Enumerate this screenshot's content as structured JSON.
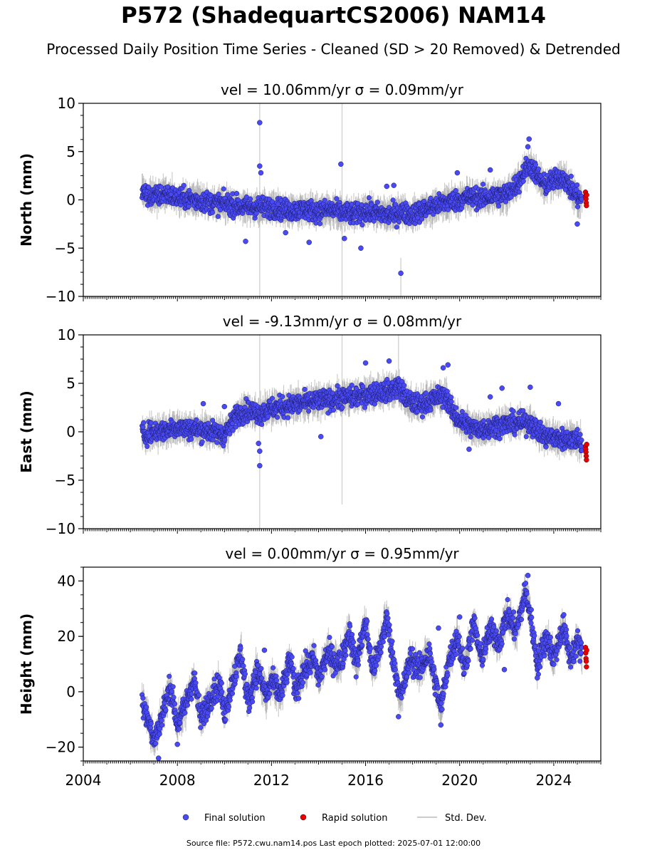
{
  "chart_data": {
    "type": "scatter",
    "title": "P572 (ShadequartCS2006) NAM14",
    "subtitle": "Processed Daily Position Time Series - Cleaned (SD > 20 Removed) & Detrended",
    "footer": "Source file: P572.cwu.nam14.pos  Last epoch plotted: 2025-07-01 12:00:00",
    "x_ticks": [
      "2004",
      "2008",
      "2012",
      "2016",
      "2020",
      "2024"
    ],
    "xlim": [
      2004.0,
      2026.0
    ],
    "legend": {
      "placement": "bottom-center",
      "entries": [
        {
          "label": "Final solution",
          "color": "#4a4af4"
        },
        {
          "label": "Rapid solution",
          "color": "#e80000"
        },
        {
          "label": "Std. Dev.",
          "color": "#cccccc"
        }
      ]
    },
    "colors": {
      "final": "#4a4af4",
      "rapid": "#e80000",
      "stddev": "#888888"
    },
    "panels": [
      {
        "ylabel": "North (mm)",
        "stat": "vel = 10.06mm/yr   σ = 0.09mm/yr",
        "ylim": [
          -10,
          10
        ],
        "yticks": [
          -10,
          -5,
          0,
          5,
          10
        ],
        "ytick_labels": [
          "−10",
          "−5",
          "0",
          "5",
          "10"
        ],
        "final_series": [
          [
            2006.5,
            0.9
          ],
          [
            2006.7,
            0.5
          ],
          [
            2007.0,
            0.3
          ],
          [
            2007.5,
            0.6
          ],
          [
            2008.0,
            0.2
          ],
          [
            2008.5,
            0.1
          ],
          [
            2009.0,
            -0.1
          ],
          [
            2009.5,
            -0.3
          ],
          [
            2010.0,
            -0.4
          ],
          [
            2010.5,
            -0.6
          ],
          [
            2011.0,
            -0.8
          ],
          [
            2011.5,
            -0.7
          ],
          [
            2012.0,
            -0.8
          ],
          [
            2012.5,
            -1.0
          ],
          [
            2013.0,
            -1.1
          ],
          [
            2013.5,
            -1.0
          ],
          [
            2014.0,
            -1.2
          ],
          [
            2014.5,
            -1.0
          ],
          [
            2015.0,
            -1.3
          ],
          [
            2015.5,
            -1.5
          ],
          [
            2016.0,
            -1.2
          ],
          [
            2016.5,
            -1.4
          ],
          [
            2017.0,
            -1.6
          ],
          [
            2017.5,
            -1.3
          ],
          [
            2018.0,
            -1.5
          ],
          [
            2018.5,
            -1.0
          ],
          [
            2019.0,
            -0.6
          ],
          [
            2019.5,
            -0.2
          ],
          [
            2020.0,
            0.0
          ],
          [
            2020.5,
            0.3
          ],
          [
            2021.0,
            0.2
          ],
          [
            2021.5,
            0.4
          ],
          [
            2022.0,
            0.6
          ],
          [
            2022.5,
            1.8
          ],
          [
            2022.8,
            3.2
          ],
          [
            2023.0,
            3.6
          ],
          [
            2023.3,
            2.5
          ],
          [
            2023.6,
            1.5
          ],
          [
            2024.0,
            2.0
          ],
          [
            2024.4,
            2.4
          ],
          [
            2024.7,
            1.2
          ],
          [
            2025.0,
            0.3
          ],
          [
            2025.2,
            0.0
          ]
        ],
        "outliers": [
          [
            2011.5,
            8.0
          ],
          [
            2011.5,
            3.5
          ],
          [
            2011.55,
            2.8
          ],
          [
            2010.9,
            -4.3
          ],
          [
            2014.95,
            3.7
          ],
          [
            2015.1,
            -4.0
          ],
          [
            2015.8,
            -5.0
          ],
          [
            2017.5,
            -7.6
          ],
          [
            2017.2,
            1.5
          ],
          [
            2022.95,
            6.3
          ],
          [
            2022.9,
            5.5
          ],
          [
            2019.9,
            2.8
          ],
          [
            2021.3,
            3.1
          ],
          [
            2016.9,
            1.4
          ],
          [
            2013.6,
            -4.4
          ],
          [
            2012.6,
            -3.4
          ],
          [
            2025.0,
            -2.5
          ]
        ],
        "rapid": [
          [
            2025.35,
            0.8
          ],
          [
            2025.36,
            0.4
          ],
          [
            2025.37,
            0.1
          ],
          [
            2025.38,
            -0.3
          ],
          [
            2025.39,
            -0.6
          ],
          [
            2025.4,
            0.5
          ]
        ],
        "stddev_spikes": [
          [
            2011.5,
            -10,
            10
          ],
          [
            2015.0,
            -10,
            10
          ],
          [
            2017.5,
            -10,
            -6
          ]
        ]
      },
      {
        "ylabel": "East (mm)",
        "stat": "vel = -9.13mm/yr   σ = 0.08mm/yr",
        "ylim": [
          -10,
          10
        ],
        "yticks": [
          -10,
          -5,
          0,
          5,
          10
        ],
        "ytick_labels": [
          "−10",
          "−5",
          "0",
          "5",
          "10"
        ],
        "final_series": [
          [
            2006.5,
            -0.3
          ],
          [
            2007.0,
            0.0
          ],
          [
            2007.5,
            0.2
          ],
          [
            2008.0,
            0.5
          ],
          [
            2008.5,
            0.3
          ],
          [
            2009.0,
            0.2
          ],
          [
            2009.5,
            0.0
          ],
          [
            2010.0,
            -0.3
          ],
          [
            2010.3,
            0.8
          ],
          [
            2010.5,
            1.8
          ],
          [
            2011.0,
            2.2
          ],
          [
            2011.5,
            1.9
          ],
          [
            2012.0,
            2.4
          ],
          [
            2012.5,
            2.6
          ],
          [
            2013.0,
            2.8
          ],
          [
            2013.5,
            3.0
          ],
          [
            2014.0,
            3.2
          ],
          [
            2014.5,
            3.3
          ],
          [
            2015.0,
            3.5
          ],
          [
            2015.5,
            3.6
          ],
          [
            2016.0,
            3.8
          ],
          [
            2016.5,
            4.1
          ],
          [
            2017.0,
            4.2
          ],
          [
            2017.4,
            4.7
          ],
          [
            2017.8,
            3.2
          ],
          [
            2018.2,
            2.8
          ],
          [
            2018.6,
            3.0
          ],
          [
            2019.0,
            3.5
          ],
          [
            2019.4,
            3.8
          ],
          [
            2019.7,
            2.0
          ],
          [
            2020.0,
            1.2
          ],
          [
            2020.5,
            0.4
          ],
          [
            2021.0,
            0.3
          ],
          [
            2021.5,
            0.6
          ],
          [
            2022.0,
            0.8
          ],
          [
            2022.5,
            0.9
          ],
          [
            2023.0,
            0.9
          ],
          [
            2023.3,
            0.2
          ],
          [
            2023.6,
            -0.5
          ],
          [
            2024.0,
            -0.6
          ],
          [
            2024.5,
            -0.8
          ],
          [
            2025.0,
            -0.7
          ],
          [
            2025.2,
            -1.2
          ]
        ],
        "outliers": [
          [
            2011.5,
            -3.5
          ],
          [
            2011.5,
            -2.0
          ],
          [
            2011.45,
            -1.2
          ],
          [
            2009.1,
            2.9
          ],
          [
            2010.0,
            2.6
          ],
          [
            2016.0,
            7.1
          ],
          [
            2017.0,
            7.3
          ],
          [
            2019.5,
            6.9
          ],
          [
            2019.3,
            6.6
          ],
          [
            2021.8,
            4.5
          ],
          [
            2023.0,
            4.6
          ],
          [
            2024.2,
            2.9
          ],
          [
            2014.1,
            -0.5
          ],
          [
            2020.4,
            -1.8
          ],
          [
            2021.3,
            3.6
          ]
        ],
        "rapid": [
          [
            2025.35,
            -1.5
          ],
          [
            2025.36,
            -1.8
          ],
          [
            2025.37,
            -2.1
          ],
          [
            2025.38,
            -2.5
          ],
          [
            2025.39,
            -2.9
          ],
          [
            2025.4,
            -1.3
          ]
        ],
        "stddev_spikes": [
          [
            2011.5,
            -10,
            10
          ],
          [
            2015.0,
            -7.5,
            10
          ],
          [
            2017.4,
            3,
            10
          ]
        ]
      },
      {
        "ylabel": "Height (mm)",
        "stat": "vel = 0.00mm/yr   σ = 0.95mm/yr",
        "ylim": [
          -25,
          45
        ],
        "yticks": [
          -20,
          0,
          20,
          40
        ],
        "ytick_labels": [
          "−20",
          "0",
          "20",
          "40"
        ],
        "final_series": [
          [
            2006.5,
            -3
          ],
          [
            2006.7,
            -8
          ],
          [
            2007.0,
            -18
          ],
          [
            2007.3,
            -10
          ],
          [
            2007.7,
            2
          ],
          [
            2008.0,
            -12
          ],
          [
            2008.3,
            -6
          ],
          [
            2008.7,
            5
          ],
          [
            2009.0,
            -10
          ],
          [
            2009.4,
            -2
          ],
          [
            2009.8,
            3
          ],
          [
            2010.0,
            -8
          ],
          [
            2010.3,
            2
          ],
          [
            2010.7,
            14
          ],
          [
            2011.0,
            -4
          ],
          [
            2011.4,
            8
          ],
          [
            2011.8,
            -2
          ],
          [
            2012.0,
            4
          ],
          [
            2012.4,
            -1
          ],
          [
            2012.8,
            12
          ],
          [
            2013.0,
            0
          ],
          [
            2013.4,
            8
          ],
          [
            2013.8,
            12
          ],
          [
            2014.0,
            5
          ],
          [
            2014.4,
            14
          ],
          [
            2014.8,
            10
          ],
          [
            2015.0,
            12
          ],
          [
            2015.3,
            22
          ],
          [
            2015.6,
            10
          ],
          [
            2016.0,
            25
          ],
          [
            2016.3,
            8
          ],
          [
            2016.6,
            15
          ],
          [
            2016.9,
            27
          ],
          [
            2017.2,
            10
          ],
          [
            2017.5,
            -2
          ],
          [
            2017.9,
            12
          ],
          [
            2018.3,
            8
          ],
          [
            2018.7,
            14
          ],
          [
            2019.0,
            2
          ],
          [
            2019.2,
            -6
          ],
          [
            2019.5,
            10
          ],
          [
            2019.9,
            20
          ],
          [
            2020.2,
            8
          ],
          [
            2020.6,
            25
          ],
          [
            2020.9,
            12
          ],
          [
            2021.3,
            22
          ],
          [
            2021.7,
            18
          ],
          [
            2022.0,
            28
          ],
          [
            2022.4,
            22
          ],
          [
            2022.8,
            36
          ],
          [
            2023.0,
            28
          ],
          [
            2023.3,
            10
          ],
          [
            2023.7,
            20
          ],
          [
            2024.0,
            12
          ],
          [
            2024.4,
            24
          ],
          [
            2024.7,
            12
          ],
          [
            2025.0,
            18
          ],
          [
            2025.2,
            14
          ]
        ],
        "outliers": [
          [
            2008.0,
            -19
          ],
          [
            2007.2,
            -24
          ],
          [
            2011.7,
            15
          ],
          [
            2017.4,
            -9
          ],
          [
            2019.1,
            23
          ],
          [
            2019.2,
            -12
          ],
          [
            2020.0,
            27
          ],
          [
            2022.9,
            42
          ],
          [
            2023.3,
            5
          ],
          [
            2021.9,
            8
          ]
        ],
        "rapid": [
          [
            2025.35,
            16
          ],
          [
            2025.36,
            14
          ],
          [
            2025.37,
            12
          ],
          [
            2025.38,
            11
          ],
          [
            2025.39,
            9
          ],
          [
            2025.4,
            15
          ]
        ],
        "stddev_spikes": []
      }
    ]
  }
}
